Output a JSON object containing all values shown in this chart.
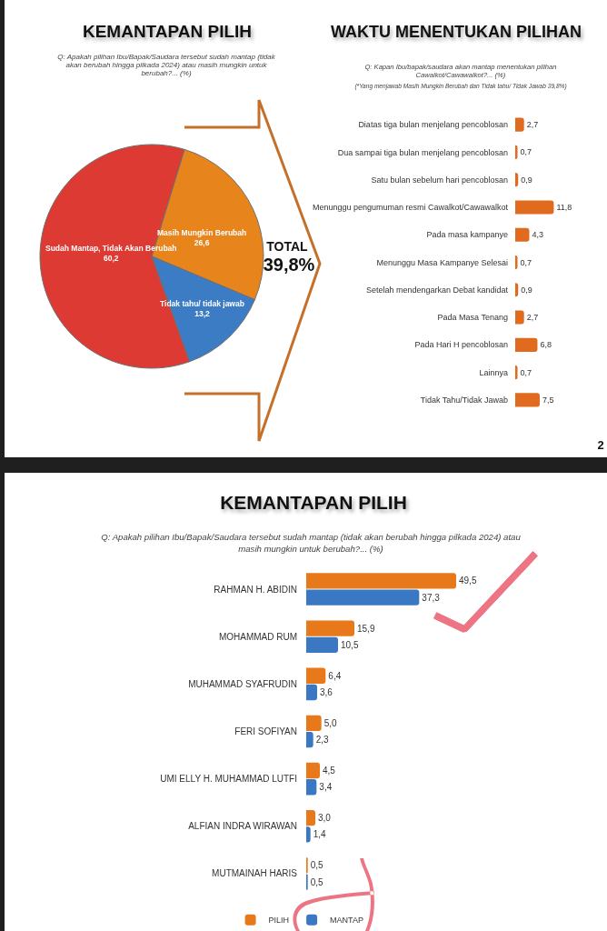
{
  "chart_data": [
    {
      "type": "pie",
      "title": "KEMANTAPAN PILIH",
      "subtitle": "Q: Apakah pilihan Ibu/Bapak/Saudara tersebut sudah mantap (tidak akan berubah hingga pilkada 2024) atau masih mungkin untuk berubah?... (%)",
      "categories": [
        "Masih Mungkin Berubah",
        "Tidak tahu/ tidak jawab",
        "Sudah Mantap, Tidak Akan Berubah"
      ],
      "values": [
        26.6,
        13.2,
        60.2
      ],
      "colors": [
        "#e8841c",
        "#3b7cc4",
        "#dc3a33"
      ],
      "value_labels": [
        "26,6",
        "13,2",
        "60,2"
      ],
      "annotations": [
        "TOTAL",
        "39,8%"
      ]
    },
    {
      "type": "bar",
      "orientation": "horizontal",
      "title": "WAKTU MENENTUKAN PILIHAN",
      "subtitle": "Q: Kapan Ibu/bapak/saudara akan mantap menentukan pilihan Cawalkot/Cawawalkot?... (%)",
      "annotations": [
        "(*Yang menjawab Masih Mungkin Berubah dan Tidak tahu/ Tidak Jawab 39,8%)",
        "2"
      ],
      "categories": [
        "Diatas tiga bulan menjelang pencoblosan",
        "Dua sampai tiga bulan menjelang pencoblosan",
        "Satu bulan sebelum hari pencoblosan",
        "Menunggu pengumuman resmi Cawalkot/Cawawalkot",
        "Pada masa kampanye",
        "Menunggu Masa Kampanye Selesai",
        "Setelah mendengarkan Debat kandidat",
        "Pada Masa Tenang",
        "Pada Hari H pencoblosan",
        "Lainnya",
        "Tidak Tahu/Tidak Jawab"
      ],
      "values": [
        2.7,
        0.7,
        0.9,
        11.8,
        4.3,
        0.7,
        0.9,
        2.7,
        6.8,
        0.7,
        7.5
      ],
      "value_labels": [
        "2,7",
        "0,7",
        "0,9",
        "11,8",
        "4,3",
        "0,7",
        "0,9",
        "2,7",
        "6,8",
        "0,7",
        "7,5"
      ],
      "color": "#e06b1f",
      "tick_labels": "y"
    },
    {
      "type": "bar",
      "orientation": "horizontal",
      "title": "KEMANTAPAN PILIH",
      "subtitle": "Q: Apakah pilihan Ibu/Bapak/Saudara tersebut sudah mantap (tidak akan berubah hingga pilkada 2024) atau masih mungkin untuk berubah?... (%)",
      "categories": [
        "RAHMAN H. ABIDIN",
        "MOHAMMAD RUM",
        "MUHAMMAD SYAFRUDIN",
        "FERI SOFIYAN",
        "UMI ELLY H. MUHAMMAD LUTFI",
        "ALFIAN INDRA WIRAWAN",
        "MUTMAINAH HARIS"
      ],
      "series": [
        {
          "name": "PILIH",
          "color": "#e8791b",
          "values": [
            49.5,
            15.9,
            6.4,
            5.0,
            4.5,
            3.0,
            0.5
          ],
          "value_labels": [
            "49,5",
            "15,9",
            "6,4",
            "5,0",
            "4,5",
            "3,0",
            "0,5"
          ]
        },
        {
          "name": "MANTAP",
          "color": "#3a78c4",
          "values": [
            37.3,
            10.5,
            3.6,
            2.3,
            3.4,
            1.4,
            0.5
          ],
          "value_labels": [
            "37,3",
            "10,5",
            "3,6",
            "2,3",
            "3,4",
            "1,4",
            "0,5"
          ]
        }
      ],
      "legend": "bottom",
      "tick_labels": "y"
    }
  ]
}
